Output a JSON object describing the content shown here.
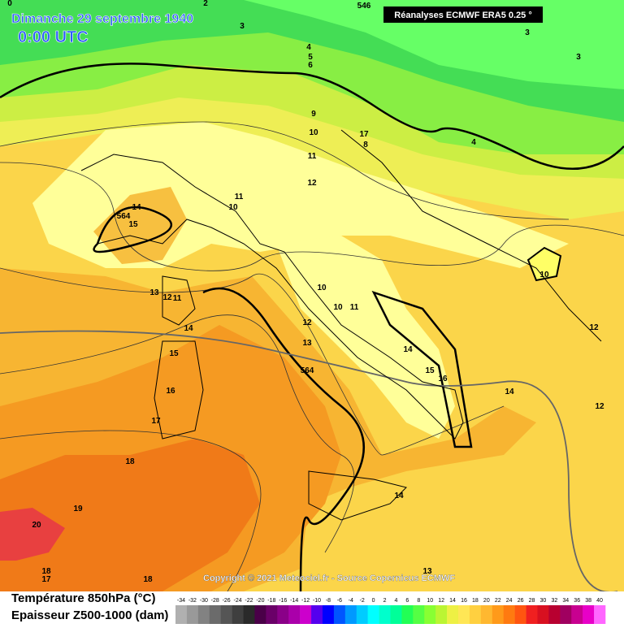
{
  "header": {
    "title": "Dimanche 29 septembre 1940",
    "time": "0:00 UTC",
    "source": "Réanalyses ECMWF ERA5 0.25 °"
  },
  "copyright": "Copyright © 2021 Meteociel.fr - Source Copernicus ECMWF",
  "legend": {
    "temperature": "Température 850hPa (°C)",
    "thickness": "Epaisseur Z500-1000 (dam)"
  },
  "scale": {
    "ticks": [
      -34,
      -32,
      -30,
      -28,
      -26,
      -24,
      -22,
      -20,
      -18,
      -16,
      -14,
      -12,
      -10,
      -8,
      -6,
      -4,
      -2,
      0,
      2,
      4,
      6,
      8,
      10,
      12,
      14,
      16,
      18,
      20,
      22,
      24,
      26,
      28,
      30,
      32,
      34,
      36,
      38,
      40
    ],
    "colors": [
      "#b0b0b0",
      "#999999",
      "#828282",
      "#6b6b6b",
      "#555555",
      "#3f3f3f",
      "#2a2a2a",
      "#4a0048",
      "#6a0068",
      "#8a0088",
      "#aa00aa",
      "#cc00cc",
      "#5500ee",
      "#0000ff",
      "#0055ff",
      "#0099ff",
      "#00ccff",
      "#00ffff",
      "#00ffcc",
      "#00ff99",
      "#22ff55",
      "#55ff44",
      "#88ff33",
      "#bbf533",
      "#eef044",
      "#ffe655",
      "#ffd040",
      "#ffb830",
      "#ff9a1a",
      "#ff7a10",
      "#ff5510",
      "#f02020",
      "#d81020",
      "#b80030",
      "#a00060",
      "#c80090",
      "#e800c8",
      "#ff66ff"
    ]
  },
  "contour_labels": [
    0,
    2,
    3,
    546,
    3,
    3,
    4,
    5,
    6,
    9,
    10,
    17,
    8,
    4,
    11,
    12,
    11,
    10,
    14,
    564,
    15,
    10,
    13,
    12,
    11,
    10,
    10,
    11,
    12,
    14,
    12,
    13,
    15,
    14,
    564,
    15,
    16,
    14,
    16,
    12,
    17,
    18,
    14,
    19,
    20,
    18,
    17,
    18,
    13
  ]
}
